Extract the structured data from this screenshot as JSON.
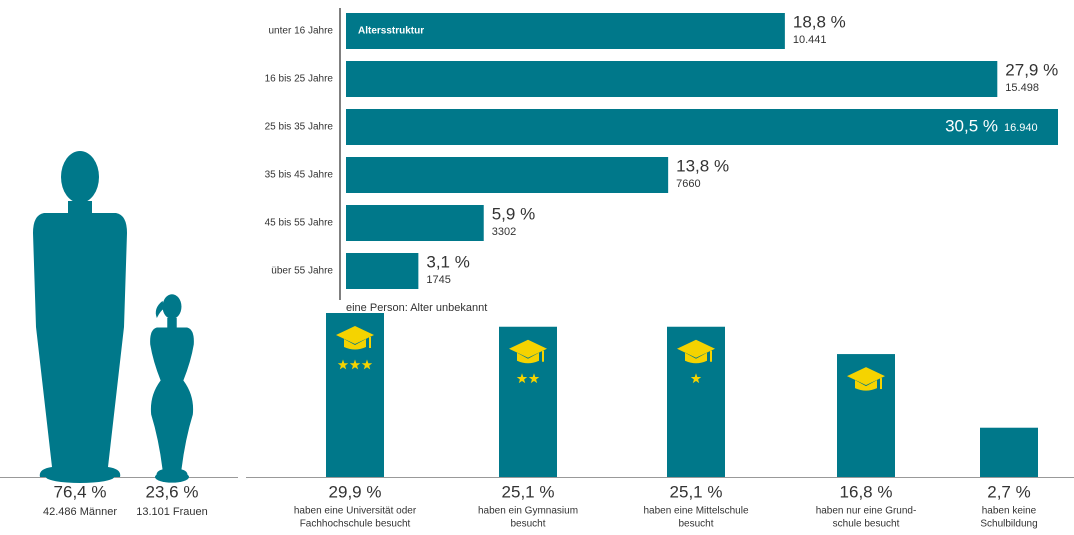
{
  "chart_data": [
    {
      "type": "hbar",
      "title": "Altersstruktur",
      "categories": [
        "unter 16 Jahre",
        "16 bis 25 Jahre",
        "25 bis 35 Jahre",
        "35 bis 45 Jahre",
        "45 bis 55 Jahre",
        "über 55 Jahre"
      ],
      "values": [
        18.8,
        27.9,
        30.5,
        13.8,
        5.9,
        3.1
      ],
      "value_labels": [
        "18,8 %",
        "27,9 %",
        "30,5 %",
        "13,8 %",
        "5,9 %",
        "3,1 %"
      ],
      "counts": [
        10441,
        15498,
        16940,
        7660,
        3302,
        1745
      ],
      "count_labels": [
        "10.441",
        "15.498",
        "16.940",
        "7660",
        "3302",
        "1745"
      ],
      "note": "eine Person: Alter unbekannt",
      "color": "#00788a"
    },
    {
      "type": "pictogram",
      "scale": "sqrt",
      "values": [
        76.4,
        23.6
      ],
      "value_labels": [
        "76,4 %",
        "23,6 %"
      ],
      "captions": [
        "42.486 Männer",
        "13.101 Frauen"
      ],
      "figures": [
        "man",
        "woman"
      ],
      "color": "#00788a"
    },
    {
      "type": "bar",
      "scale": "sqrt",
      "categories": [
        [
          "haben eine Universität oder",
          "Fachhochschule besucht"
        ],
        [
          "haben ein Gymnasium",
          "besucht"
        ],
        [
          "haben eine Mittelschule",
          "besucht"
        ],
        [
          "haben nur eine Grund-",
          "schule besucht"
        ],
        [
          "haben keine",
          "Schulbildung"
        ]
      ],
      "values": [
        29.9,
        25.1,
        25.1,
        16.8,
        2.7
      ],
      "value_labels": [
        "29,9 %",
        "25,1 %",
        "25,1 %",
        "16,8 %",
        "2,7 %"
      ],
      "stars": [
        3,
        2,
        1,
        0,
        null
      ],
      "color": "#00788a",
      "icon_color": "#f5d300"
    }
  ]
}
